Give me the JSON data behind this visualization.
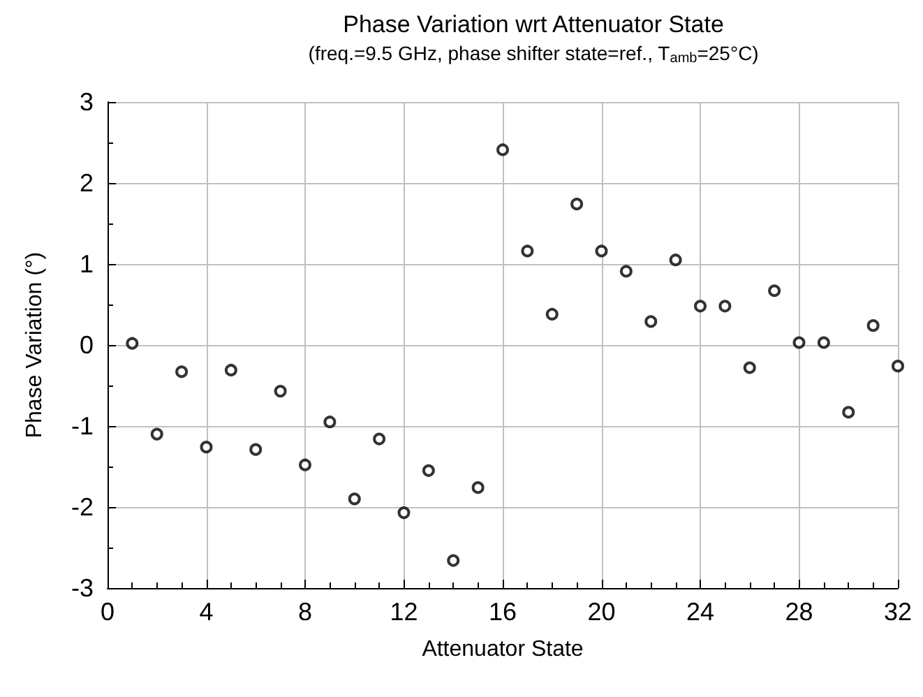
{
  "chart_data": {
    "type": "scatter",
    "title": "Phase Variation wrt Attenuator State",
    "subtitle": "(freq.=9.5 GHz, phase shifter state=ref., T$_{amb}$=25°C)",
    "xlabel": "Attenuator State",
    "ylabel": "Phase Variation (°)",
    "x": [
      1,
      2,
      3,
      4,
      5,
      6,
      7,
      8,
      9,
      10,
      11,
      12,
      13,
      14,
      15,
      16,
      17,
      18,
      19,
      20,
      21,
      22,
      23,
      24,
      25,
      26,
      27,
      28,
      29,
      30,
      31,
      32
    ],
    "series": [
      {
        "color": "#000000",
        "values": [
          0.02,
          -1.1,
          -0.33,
          -1.26,
          -0.31,
          -1.29,
          -0.57,
          -1.48,
          -0.95,
          -1.9,
          -1.16,
          -2.07,
          -1.55,
          -2.66,
          -1.76,
          2.41,
          1.16,
          0.38,
          1.74,
          1.16,
          0.91,
          0.29,
          1.05,
          0.48,
          0.48,
          -0.28,
          0.67,
          0.03,
          0.03,
          -0.83,
          0.24,
          -0.26
        ]
      }
    ],
    "xlim": [
      0,
      32
    ],
    "xticks": [
      0,
      4,
      8,
      12,
      16,
      20,
      24,
      28,
      32
    ],
    "ylim": [
      -3,
      3
    ],
    "yticks": [
      -3,
      -2,
      -1,
      0,
      1,
      2,
      3
    ],
    "grid": true,
    "marker": "circle"
  }
}
